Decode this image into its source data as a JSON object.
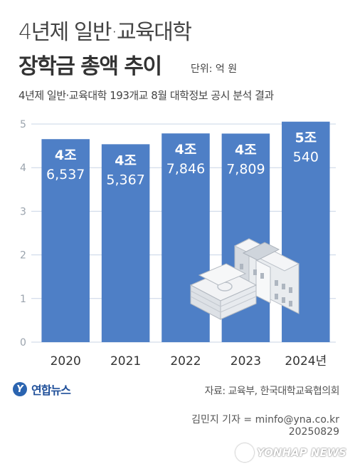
{
  "header": {
    "title_line1": "4년제 일반·교육대학",
    "title_line2": "장학금 총액 추이",
    "unit": "단위: 억 원",
    "subtitle": "4년제 일반·교육대학 193개교 8월 대학정보 공시 분석 결과"
  },
  "chart_data": {
    "type": "bar",
    "categories": [
      "2020",
      "2021",
      "2022",
      "2023",
      "2024년"
    ],
    "values": [
      46537,
      45367,
      47846,
      47809,
      50540
    ],
    "labels": [
      {
        "top": "4조",
        "bottom": "6,537"
      },
      {
        "top": "4조",
        "bottom": "5,367"
      },
      {
        "top": "4조",
        "bottom": "7,846"
      },
      {
        "top": "4조",
        "bottom": "7,809"
      },
      {
        "top": "5조",
        "bottom": "540"
      }
    ],
    "y_ticks": [
      "0",
      "1",
      "2",
      "3",
      "4",
      "5"
    ],
    "ylim": [
      0,
      50000
    ],
    "grid": true,
    "colors": {
      "bar": "#4e7fc6",
      "grid": "#c9d4e6",
      "tick": "#9aa3ad"
    }
  },
  "footer": {
    "logo_mark": "Y",
    "logo_text": "연합뉴스",
    "source": "자료: 교육부, 한국대학교육협의회",
    "byline": "김민지 기자 = minfo@yna.co.kr",
    "date": "20250829",
    "watermark": "YONHAP NEWS"
  }
}
